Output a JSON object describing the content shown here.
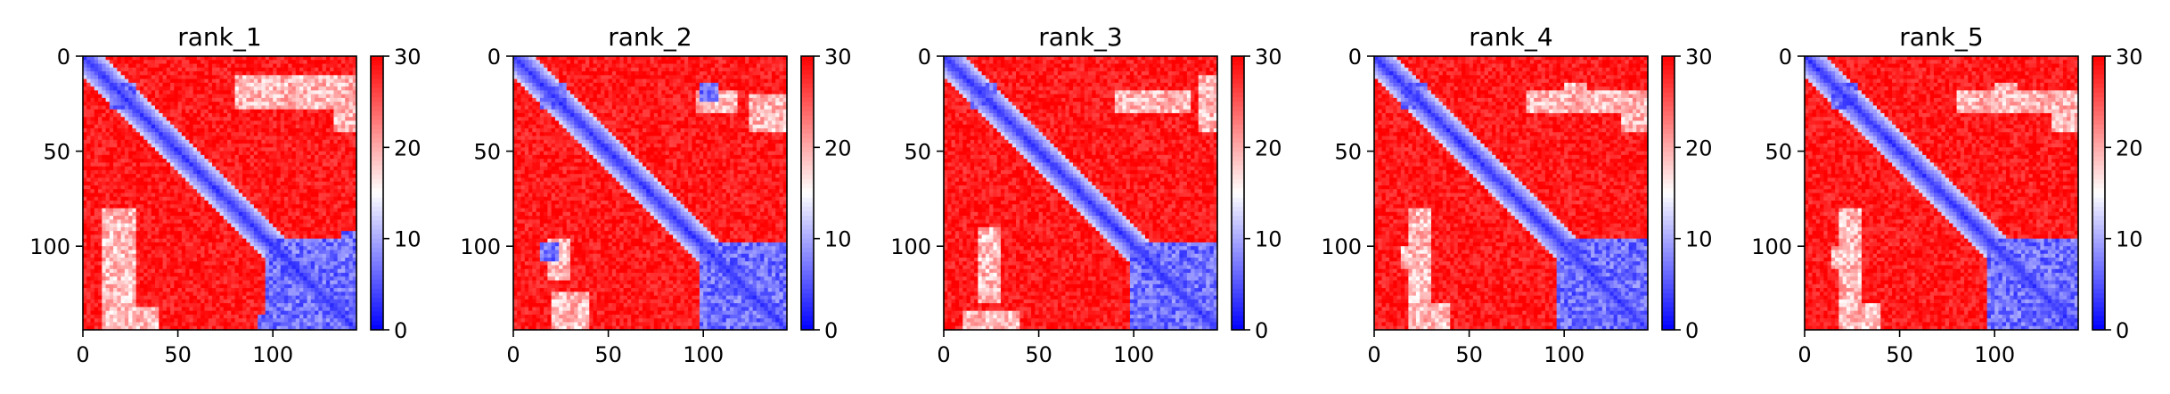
{
  "figure": {
    "colormap": "bwr",
    "colors": {
      "low": "#0000ff",
      "mid": "#ffffff",
      "high": "#ff0000"
    }
  },
  "chart_data": [
    {
      "type": "heatmap",
      "title": "rank_1",
      "xlim": [
        0,
        144
      ],
      "ylim": [
        144,
        0
      ],
      "xticks": [
        0,
        50,
        100
      ],
      "yticks": [
        0,
        50,
        100
      ],
      "clim": [
        0,
        30
      ],
      "cbar_ticks": [
        0,
        10,
        20,
        30
      ],
      "blue_blocks": [
        [
          14,
          28,
          14,
          28
        ],
        [
          96,
          144,
          96,
          144
        ],
        [
          92,
          104,
          136,
          144
        ]
      ],
      "light_blocks": [
        [
          10,
          28,
          80,
          144
        ],
        [
          132,
          144,
          20,
          40
        ]
      ]
    },
    {
      "type": "heatmap",
      "title": "rank_2",
      "xlim": [
        0,
        144
      ],
      "ylim": [
        144,
        0
      ],
      "xticks": [
        0,
        50,
        100
      ],
      "yticks": [
        0,
        50,
        100
      ],
      "clim": [
        0,
        30
      ],
      "cbar_ticks": [
        0,
        10,
        20,
        30
      ],
      "blue_blocks": [
        [
          14,
          28,
          14,
          28
        ],
        [
          98,
          144,
          98,
          144
        ],
        [
          98,
          108,
          14,
          24
        ],
        [
          130,
          142,
          126,
          138
        ]
      ],
      "light_blocks": [
        [
          18,
          30,
          96,
          118
        ],
        [
          124,
          144,
          20,
          40
        ]
      ]
    },
    {
      "type": "heatmap",
      "title": "rank_3",
      "xlim": [
        0,
        144
      ],
      "ylim": [
        144,
        0
      ],
      "xticks": [
        0,
        50,
        100
      ],
      "yticks": [
        0,
        50,
        100
      ],
      "clim": [
        0,
        30
      ],
      "cbar_ticks": [
        0,
        10,
        20,
        30
      ],
      "blue_blocks": [
        [
          14,
          28,
          14,
          28
        ],
        [
          98,
          144,
          98,
          144
        ],
        [
          100,
          112,
          136,
          144
        ],
        [
          116,
          126,
          126,
          136
        ]
      ],
      "light_blocks": [
        [
          18,
          30,
          90,
          130
        ],
        [
          134,
          144,
          10,
          40
        ]
      ]
    },
    {
      "type": "heatmap",
      "title": "rank_4",
      "xlim": [
        0,
        144
      ],
      "ylim": [
        144,
        0
      ],
      "xticks": [
        0,
        50,
        100
      ],
      "yticks": [
        0,
        50,
        100
      ],
      "clim": [
        0,
        30
      ],
      "cbar_ticks": [
        0,
        10,
        20,
        30
      ],
      "blue_blocks": [
        [
          14,
          28,
          14,
          28
        ],
        [
          96,
          144,
          96,
          144
        ]
      ],
      "light_blocks": [
        [
          18,
          30,
          80,
          144
        ],
        [
          130,
          144,
          18,
          40
        ],
        [
          100,
          112,
          14,
          24
        ]
      ]
    },
    {
      "type": "heatmap",
      "title": "rank_5",
      "xlim": [
        0,
        144
      ],
      "ylim": [
        144,
        0
      ],
      "xticks": [
        0,
        50,
        100
      ],
      "yticks": [
        0,
        50,
        100
      ],
      "clim": [
        0,
        30
      ],
      "cbar_ticks": [
        0,
        10,
        20,
        30
      ],
      "blue_blocks": [
        [
          14,
          28,
          14,
          28
        ],
        [
          96,
          144,
          96,
          144
        ]
      ],
      "light_blocks": [
        [
          18,
          30,
          80,
          144
        ],
        [
          130,
          144,
          18,
          40
        ],
        [
          100,
          112,
          14,
          24
        ]
      ]
    }
  ]
}
